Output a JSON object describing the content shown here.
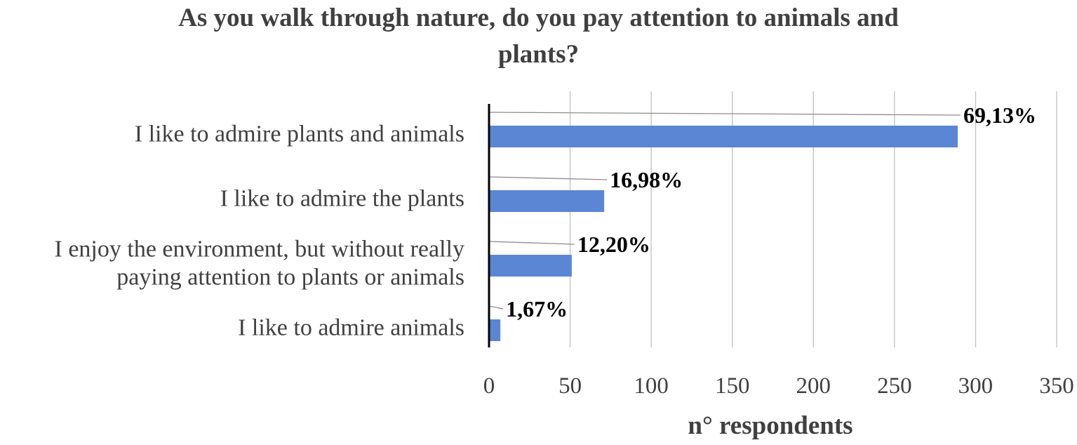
{
  "chart_data": {
    "type": "bar",
    "orientation": "horizontal",
    "title_lines": [
      "As you walk through nature, do you pay attention to animals and",
      "plants?"
    ],
    "xlabel": "n° respondents",
    "ylabel": "",
    "xlim": [
      0,
      350
    ],
    "x_ticks": [
      0,
      50,
      100,
      150,
      200,
      250,
      300,
      350
    ],
    "x_tick_labels": [
      "0",
      "50",
      "100",
      "150",
      "200",
      "250",
      "300",
      "350"
    ],
    "grid": "vertical",
    "categories": [
      [
        "I like to admire plants and animals"
      ],
      [
        "I like to admire the plants"
      ],
      [
        "I enjoy the environment, but without really",
        "paying attention to plants or animals"
      ],
      [
        "I like to admire animals"
      ]
    ],
    "values": [
      289,
      71,
      51,
      7
    ],
    "data_labels": [
      "69,13%",
      "16,98%",
      "12,20%",
      "1,67%"
    ],
    "bar_color": "#5b86d4"
  }
}
